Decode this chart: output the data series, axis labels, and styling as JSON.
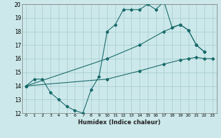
{
  "xlabel": "Humidex (Indice chaleur)",
  "bg_color": "#cce8ea",
  "grid_color": "#aacfd2",
  "line_color": "#1a6b6b",
  "xlim": [
    -0.5,
    23.5
  ],
  "ylim": [
    12,
    20
  ],
  "xtick_vals": [
    0,
    1,
    2,
    3,
    4,
    5,
    6,
    7,
    8,
    9,
    10,
    11,
    12,
    13,
    14,
    15,
    16,
    17,
    18,
    19,
    20,
    21,
    22,
    23
  ],
  "ytick_vals": [
    12,
    13,
    14,
    15,
    16,
    17,
    18,
    19,
    20
  ],
  "line1_x": [
    0,
    1,
    2,
    3,
    4,
    5,
    6,
    7,
    8,
    9,
    10,
    11,
    12,
    13,
    14,
    15,
    16,
    17,
    18,
    19,
    20,
    21,
    22
  ],
  "line1_y": [
    14.0,
    14.5,
    14.5,
    13.5,
    13.0,
    12.5,
    12.2,
    12.0,
    13.7,
    14.7,
    18.0,
    18.5,
    19.6,
    19.6,
    19.6,
    20.0,
    19.6,
    20.2,
    18.3,
    18.5,
    18.1,
    17.0,
    16.5
  ],
  "line2_x": [
    0,
    10,
    14,
    17,
    19,
    20,
    21,
    22
  ],
  "line2_y": [
    14.0,
    16.0,
    17.0,
    18.0,
    18.5,
    18.1,
    17.0,
    16.5
  ],
  "line3_x": [
    0,
    10,
    14,
    17,
    19,
    20,
    21,
    22,
    23
  ],
  "line3_y": [
    14.0,
    14.5,
    15.1,
    15.6,
    15.9,
    16.0,
    16.1,
    16.0,
    16.0
  ]
}
